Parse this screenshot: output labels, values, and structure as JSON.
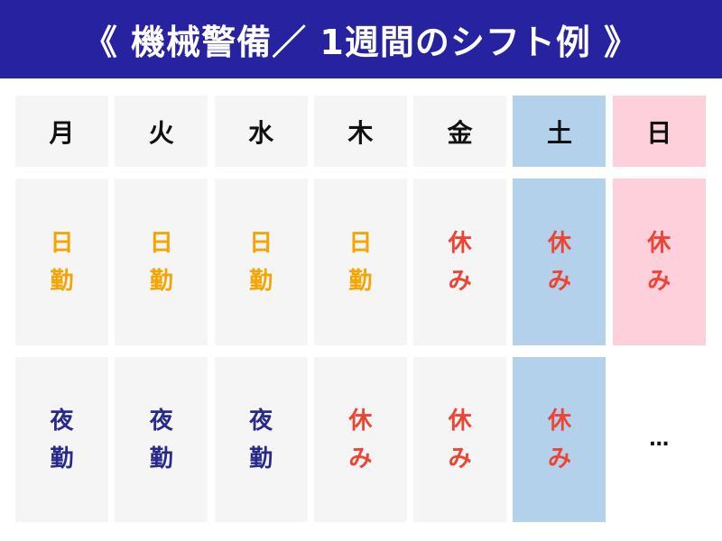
{
  "title": "《 機械警備／ 1週間のシフト例 》",
  "days": [
    "月",
    "火",
    "水",
    "木",
    "金",
    "土",
    "日"
  ],
  "row1": [
    "日勤",
    "日勤",
    "日勤",
    "日勤",
    "休み",
    "休み",
    "休み"
  ],
  "row2": [
    "夜勤",
    "夜勤",
    "夜勤",
    "休み",
    "休み",
    "休み"
  ],
  "row2_last": "…",
  "colors": {
    "header": "#2723a0",
    "day_shift": "#f5a400",
    "night_shift": "#272a8c",
    "off": "#ee4433",
    "saturday": "#b3d1ea",
    "sunday": "#fdd0dc",
    "cell": "#f5f5f5"
  }
}
